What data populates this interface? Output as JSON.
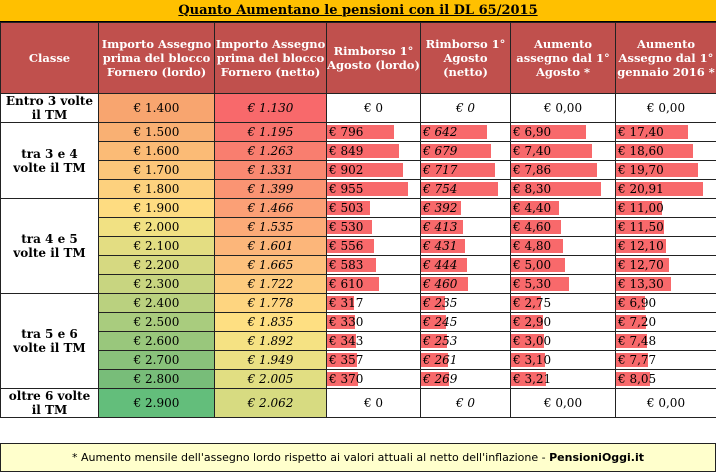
{
  "title": "Quanto Aumentano le pensioni con il DL 65/2015",
  "headers": [
    "Classe",
    "Importo Assegno prima del blocco Fornero (lordo)",
    "Importo Assegno prima del blocco Fornero (netto)",
    "Rimborso 1° Agosto (lordo)",
    "Rimborso 1° Agosto (netto)",
    "Aumento assegno dal 1° Agosto *",
    "Aumento Assegno dal 1° gennaio 2016 *"
  ],
  "groups": [
    {
      "label": "Entro 3 volte il TM",
      "rows": [
        {
          "lordo": "€ 1.400",
          "netto": "€ 1.130",
          "rl": "€ 0",
          "rn": "€ 0",
          "ag": "€ 0,00",
          "ge": "€ 0,00",
          "bar": false,
          "lc": "#f8a56f",
          "nc": "#f8696b"
        }
      ]
    },
    {
      "label": "tra 3 e 4 volte il TM",
      "rows": [
        {
          "lordo": "€ 1.500",
          "netto": "€ 1.195",
          "rl": "€ 796",
          "rn": "€ 642",
          "ag": "€ 6,90",
          "ge": "€ 17,40",
          "bar": true,
          "v": [
            796,
            642,
            6.9,
            17.4
          ],
          "lc": "#f9b073",
          "nc": "#f8736d"
        },
        {
          "lordo": "€ 1.600",
          "netto": "€ 1.263",
          "rl": "€ 849",
          "rn": "€ 679",
          "ag": "€ 7,40",
          "ge": "€ 18,60",
          "bar": true,
          "v": [
            849,
            679,
            7.4,
            18.6
          ],
          "lc": "#fbbb76",
          "nc": "#f97e6f"
        },
        {
          "lordo": "€ 1.700",
          "netto": "€ 1.331",
          "rl": "€ 902",
          "rn": "€ 717",
          "ag": "€ 7,86",
          "ge": "€ 19,70",
          "bar": true,
          "v": [
            902,
            717,
            7.86,
            19.7
          ],
          "lc": "#fcc67a",
          "nc": "#f98971"
        },
        {
          "lordo": "€ 1.800",
          "netto": "€ 1.399",
          "rl": "€ 955",
          "rn": "€ 754",
          "ag": "€ 8,30",
          "ge": "€ 20,91",
          "bar": true,
          "v": [
            955,
            754,
            8.3,
            20.91
          ],
          "lc": "#fdd17e",
          "nc": "#fa9473"
        }
      ]
    },
    {
      "label": "tra 4 e 5 volte il TM",
      "rows": [
        {
          "lordo": "€ 1.900",
          "netto": "€ 1.466",
          "rl": "€ 503",
          "rn": "€ 392",
          "ag": "€ 4,40",
          "ge": "€ 11,00",
          "bar": true,
          "v": [
            503,
            392,
            4.4,
            11.0
          ],
          "lc": "#fedc81",
          "nc": "#fba076"
        },
        {
          "lordo": "€ 2.000",
          "netto": "€ 1.535",
          "rl": "€ 530",
          "rn": "€ 413",
          "ag": "€ 4,60",
          "ge": "€ 11,50",
          "bar": true,
          "v": [
            530,
            413,
            4.6,
            11.5
          ],
          "lc": "#f1e183",
          "nc": "#fcab78"
        },
        {
          "lordo": "€ 2.100",
          "netto": "€ 1.601",
          "rl": "€ 556",
          "rn": "€ 431",
          "ag": "€ 4,80",
          "ge": "€ 12,10",
          "bar": true,
          "v": [
            556,
            431,
            4.8,
            12.1
          ],
          "lc": "#e3dd82",
          "nc": "#fcb67a"
        },
        {
          "lordo": "€ 2.200",
          "netto": "€ 1.665",
          "rl": "€ 583",
          "rn": "€ 444",
          "ag": "€ 5,00",
          "ge": "€ 12,70",
          "bar": true,
          "v": [
            583,
            444,
            5.0,
            12.7
          ],
          "lc": "#d6d981",
          "nc": "#fdc17d"
        },
        {
          "lordo": "€ 2.300",
          "netto": "€ 1.722",
          "rl": "€ 610",
          "rn": "€ 460",
          "ag": "€ 5,30",
          "ge": "€ 13,30",
          "bar": true,
          "v": [
            610,
            460,
            5.3,
            13.3
          ],
          "lc": "#c8d580",
          "nc": "#fdcb7e"
        }
      ]
    },
    {
      "label": "tra 5 e 6 volte il TM",
      "rows": [
        {
          "lordo": "€ 2.400",
          "netto": "€ 1.778",
          "rl": "€ 317",
          "rn": "€ 235",
          "ag": "€ 2,75",
          "ge": "€ 6,90",
          "bar": true,
          "v": [
            317,
            235,
            2.75,
            6.9
          ],
          "lc": "#bad17f",
          "nc": "#fed580"
        },
        {
          "lordo": "€ 2.500",
          "netto": "€ 1.835",
          "rl": "€ 330",
          "rn": "€ 245",
          "ag": "€ 2,90",
          "ge": "€ 7,20",
          "bar": true,
          "v": [
            330,
            245,
            2.9,
            7.2
          ],
          "lc": "#a9cc7e",
          "nc": "#fedf82"
        },
        {
          "lordo": "€ 2.600",
          "netto": "€ 1.892",
          "rl": "€ 343",
          "rn": "€ 253",
          "ag": "€ 3,00",
          "ge": "€ 7,48",
          "bar": true,
          "v": [
            343,
            253,
            3.0,
            7.48
          ],
          "lc": "#99c77c",
          "nc": "#f5e283"
        },
        {
          "lordo": "€ 2.700",
          "netto": "€ 1.949",
          "rl": "€ 357",
          "rn": "€ 261",
          "ag": "€ 3,10",
          "ge": "€ 7,77",
          "bar": true,
          "v": [
            357,
            261,
            3.1,
            7.77
          ],
          "lc": "#89c27b",
          "nc": "#ebe083"
        },
        {
          "lordo": "€ 2.800",
          "netto": "€ 2.005",
          "rl": "€ 370",
          "rn": "€ 269",
          "ag": "€ 3,21",
          "ge": "€ 8,05",
          "bar": true,
          "v": [
            370,
            269,
            3.21,
            8.05
          ],
          "lc": "#78bd79",
          "nc": "#e1de82"
        }
      ]
    },
    {
      "label": "oltre 6 volte il TM",
      "rows": [
        {
          "lordo": "€ 2.900",
          "netto": "€ 2.062",
          "rl": "€ 0",
          "rn": "€ 0",
          "ag": "€ 0,00",
          "ge": "€ 0,00",
          "bar": false,
          "lc": "#63be7b",
          "nc": "#d7db81"
        }
      ]
    }
  ],
  "footnote_text": "* Aumento mensile dell'assegno lordo rispetto ai valori attuali al netto dell'inflazione - ",
  "footnote_brand": "PensioniOggi.it"
}
